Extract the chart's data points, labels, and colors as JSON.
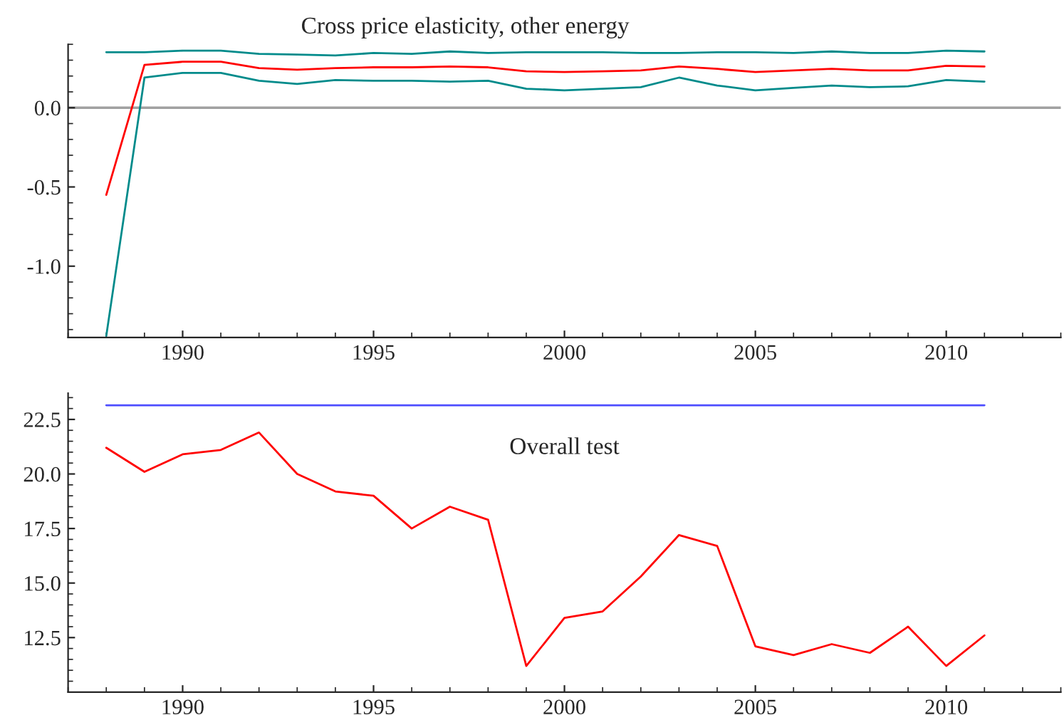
{
  "chart_data": [
    {
      "type": "line",
      "title": "Cross price elasticity, other energy",
      "x": [
        1988,
        1989,
        1990,
        1991,
        1992,
        1993,
        1994,
        1995,
        1996,
        1997,
        1998,
        1999,
        2000,
        2001,
        2002,
        2003,
        2004,
        2005,
        2006,
        2007,
        2008,
        2009,
        2010,
        2011
      ],
      "series": [
        {
          "color": "#008b8b",
          "values": [
            0.35,
            0.35,
            0.36,
            0.36,
            0.34,
            0.335,
            0.33,
            0.345,
            0.34,
            0.355,
            0.345,
            0.35,
            0.35,
            0.35,
            0.345,
            0.345,
            0.35,
            0.35,
            0.345,
            0.355,
            0.345,
            0.345,
            0.36,
            0.355
          ]
        },
        {
          "color": "#ff0000",
          "values": [
            -0.55,
            0.27,
            0.29,
            0.29,
            0.25,
            0.24,
            0.25,
            0.255,
            0.255,
            0.26,
            0.255,
            0.23,
            0.225,
            0.23,
            0.235,
            0.26,
            0.245,
            0.225,
            0.235,
            0.245,
            0.235,
            0.235,
            0.265,
            0.26
          ]
        },
        {
          "color": "#008b8b",
          "values": [
            -1.44,
            0.19,
            0.22,
            0.22,
            0.17,
            0.15,
            0.175,
            0.17,
            0.17,
            0.165,
            0.17,
            0.12,
            0.11,
            0.12,
            0.13,
            0.19,
            0.14,
            0.11,
            0.125,
            0.14,
            0.13,
            0.135,
            0.175,
            0.165
          ]
        }
      ],
      "xlim": [
        1987,
        2013
      ],
      "xticks": [
        1990,
        1995,
        2000,
        2005,
        2010
      ],
      "ylim": [
        -1.45,
        0.4
      ],
      "yticks": [
        {
          "value": -1.0,
          "label": "-1.0"
        },
        {
          "value": -0.5,
          "label": "-0.5"
        },
        {
          "value": 0.0,
          "label": "0.0"
        }
      ],
      "ref_lines": [
        {
          "axis": "y",
          "value": 0,
          "color": "#a0a0a0"
        }
      ],
      "grid": false,
      "legend": false
    },
    {
      "type": "line",
      "title": "Overall test",
      "x": [
        1988,
        1989,
        1990,
        1991,
        1992,
        1993,
        1994,
        1995,
        1996,
        1997,
        1998,
        1999,
        2000,
        2001,
        2002,
        2003,
        2004,
        2005,
        2006,
        2007,
        2008,
        2009,
        2010,
        2011
      ],
      "series": [
        {
          "color": "#4d4dff",
          "values": [
            23.15,
            23.15,
            23.15,
            23.15,
            23.15,
            23.15,
            23.15,
            23.15,
            23.15,
            23.15,
            23.15,
            23.15,
            23.15,
            23.15,
            23.15,
            23.15,
            23.15,
            23.15,
            23.15,
            23.15,
            23.15,
            23.15,
            23.15,
            23.15
          ]
        },
        {
          "color": "#ff0000",
          "values": [
            21.2,
            20.1,
            20.9,
            21.1,
            21.9,
            20.0,
            19.2,
            19.0,
            17.5,
            18.5,
            17.9,
            11.2,
            13.4,
            13.7,
            15.3,
            17.2,
            16.7,
            12.1,
            11.7,
            12.2,
            11.8,
            13.0,
            11.2,
            12.6
          ]
        }
      ],
      "xlim": [
        1987,
        2013
      ],
      "xticks": [
        1990,
        1995,
        2000,
        2005,
        2010
      ],
      "ylim": [
        10.0,
        23.7
      ],
      "yticks": [
        {
          "value": 12.5,
          "label": "12.5"
        },
        {
          "value": 15.0,
          "label": "15.0"
        },
        {
          "value": 17.5,
          "label": "17.5"
        },
        {
          "value": 20.0,
          "label": "20.0"
        },
        {
          "value": 22.5,
          "label": "22.5"
        }
      ],
      "grid": false,
      "legend": false
    }
  ]
}
